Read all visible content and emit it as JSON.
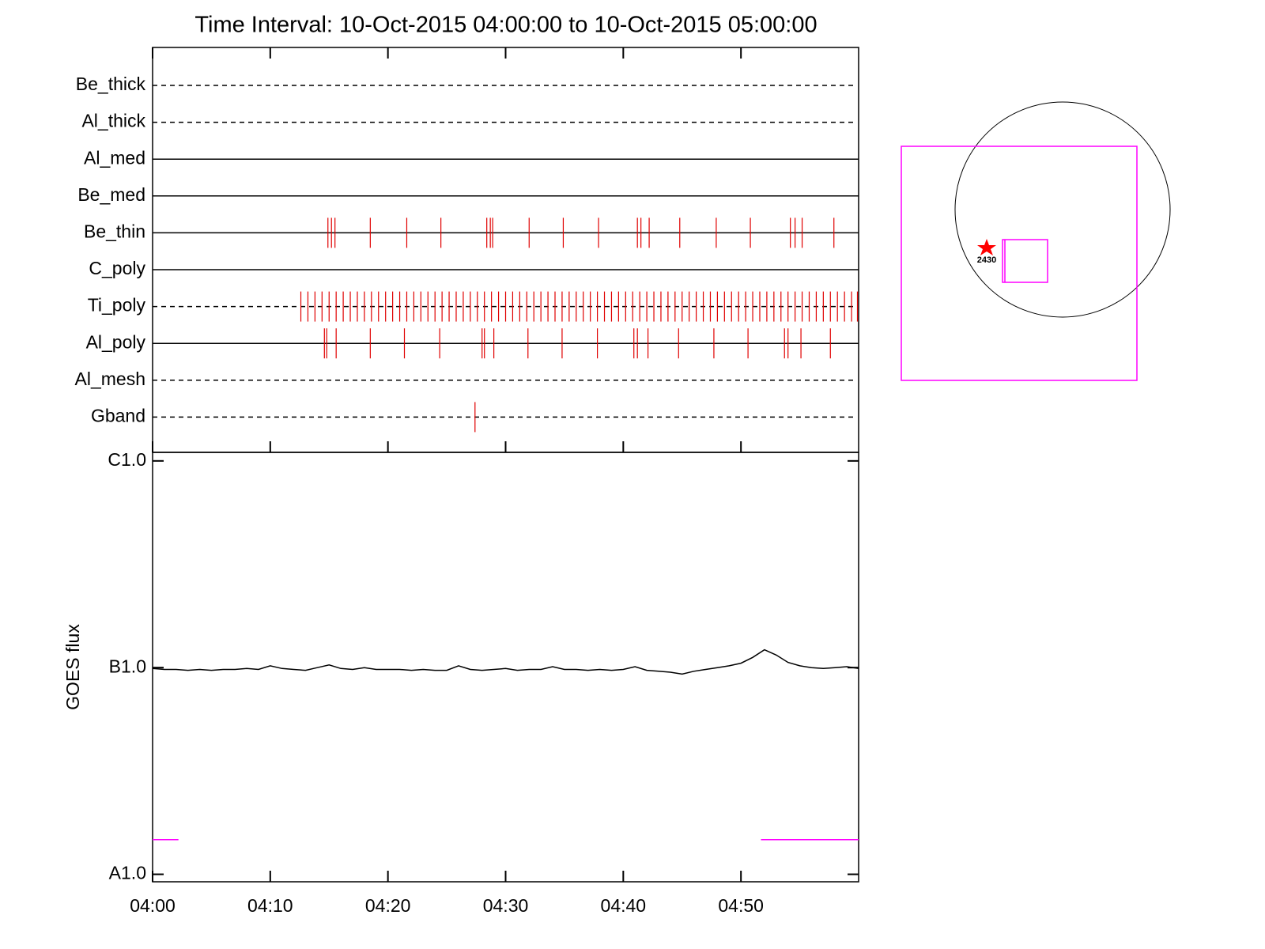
{
  "title": "Time Interval: 10-Oct-2015 04:00:00 to 10-Oct-2015 05:00:00",
  "chart_data": [
    {
      "type": "timeline",
      "xlim": [
        0,
        60
      ],
      "xticks": [
        {
          "value": 0,
          "label": "04:00"
        },
        {
          "value": 10,
          "label": "04:10"
        },
        {
          "value": 20,
          "label": "04:20"
        },
        {
          "value": 30,
          "label": "04:30"
        },
        {
          "value": 40,
          "label": "04:40"
        },
        {
          "value": 50,
          "label": "04:50"
        }
      ],
      "event_color": "#e00000",
      "series": [
        {
          "name": "Be_thick",
          "style": "dashed",
          "x": []
        },
        {
          "name": "Al_thick",
          "style": "dashed",
          "x": []
        },
        {
          "name": "Al_med",
          "style": "solid",
          "x": []
        },
        {
          "name": "Be_med",
          "style": "solid",
          "x": []
        },
        {
          "name": "Be_thin",
          "style": "solid",
          "x": [
            14.9,
            15.2,
            15.5,
            18.5,
            21.6,
            24.5,
            28.4,
            28.7,
            28.9,
            32.0,
            34.9,
            37.9,
            41.2,
            41.5,
            42.2,
            44.8,
            47.9,
            50.8,
            54.2,
            54.6,
            55.2,
            57.9
          ]
        },
        {
          "name": "C_poly",
          "style": "solid",
          "x": []
        },
        {
          "name": "Ti_poly",
          "style": "dashed",
          "x": [
            12.6,
            13.2,
            13.8,
            14.4,
            15.0,
            15.6,
            16.2,
            16.8,
            17.4,
            18.0,
            18.6,
            19.2,
            19.8,
            20.4,
            21.0,
            21.6,
            22.2,
            22.8,
            23.4,
            24.0,
            24.6,
            25.2,
            25.8,
            26.4,
            27.0,
            27.6,
            28.2,
            28.8,
            29.4,
            30.0,
            30.6,
            31.2,
            31.8,
            32.4,
            33.0,
            33.6,
            34.2,
            34.8,
            35.4,
            36.0,
            36.6,
            37.2,
            37.8,
            38.4,
            39.0,
            39.6,
            40.2,
            40.8,
            41.4,
            42.0,
            42.6,
            43.2,
            43.8,
            44.4,
            45.0,
            45.6,
            46.2,
            46.8,
            47.4,
            48.0,
            48.6,
            49.2,
            49.8,
            50.4,
            51.0,
            51.6,
            52.2,
            52.8,
            53.4,
            54.0,
            54.6,
            55.2,
            55.8,
            56.4,
            57.0,
            57.6,
            58.2,
            58.8,
            59.4,
            59.9
          ]
        },
        {
          "name": "Al_poly",
          "style": "solid",
          "x": [
            14.6,
            14.8,
            15.6,
            18.5,
            21.4,
            24.4,
            28.0,
            28.2,
            29.0,
            31.9,
            34.8,
            37.8,
            40.9,
            41.2,
            42.1,
            44.7,
            47.7,
            50.6,
            53.7,
            54.0,
            55.1,
            57.6
          ]
        },
        {
          "name": "Al_mesh",
          "style": "dashed",
          "x": []
        },
        {
          "name": "Gband",
          "style": "dashed",
          "x": [
            27.4
          ]
        }
      ]
    },
    {
      "type": "line",
      "ylabel": "GOES flux",
      "log_y": true,
      "xlim": [
        0,
        60
      ],
      "ylim": [
        9.2e-09,
        1.1e-06
      ],
      "xticks": [
        {
          "value": 0,
          "label": "04:00"
        },
        {
          "value": 10,
          "label": "04:10"
        },
        {
          "value": 20,
          "label": "04:20"
        },
        {
          "value": 30,
          "label": "04:30"
        },
        {
          "value": 40,
          "label": "04:40"
        },
        {
          "value": 50,
          "label": "04:50"
        }
      ],
      "yticks": [
        {
          "value": 1e-08,
          "label": "A1.0"
        },
        {
          "value": 1e-07,
          "label": "B1.0"
        },
        {
          "value": 1e-06,
          "label": "C1.0"
        }
      ],
      "series": [
        {
          "color": "#000000",
          "x": [
            0,
            1,
            2,
            3,
            4,
            5,
            6,
            7,
            8,
            9,
            10,
            11,
            12,
            13,
            14,
            15,
            16,
            17,
            18,
            19,
            20,
            21,
            22,
            23,
            24,
            25,
            26,
            27,
            28,
            29,
            30,
            31,
            32,
            33,
            34,
            35,
            36,
            37,
            38,
            39,
            40,
            41,
            42,
            43,
            44,
            45,
            46,
            47,
            48,
            49,
            50,
            51,
            52,
            53,
            54,
            55,
            56,
            57,
            58,
            59,
            60
          ],
          "values": [
            9.9e-08,
            9.8e-08,
            9.8e-08,
            9.7e-08,
            9.8e-08,
            9.7e-08,
            9.8e-08,
            9.8e-08,
            9.9e-08,
            9.8e-08,
            1.02e-07,
            9.9e-08,
            9.8e-08,
            9.7e-08,
            1e-07,
            1.03e-07,
            9.9e-08,
            9.8e-08,
            1e-07,
            9.8e-08,
            9.8e-08,
            9.8e-08,
            9.7e-08,
            9.8e-08,
            9.7e-08,
            9.7e-08,
            1.02e-07,
            9.8e-08,
            9.7e-08,
            9.8e-08,
            9.9e-08,
            9.7e-08,
            9.8e-08,
            9.8e-08,
            1.01e-07,
            9.8e-08,
            9.8e-08,
            9.7e-08,
            9.8e-08,
            9.7e-08,
            9.8e-08,
            1.01e-07,
            9.7e-08,
            9.6e-08,
            9.5e-08,
            9.3e-08,
            9.6e-08,
            9.8e-08,
            1e-07,
            1.02e-07,
            1.05e-07,
            1.12e-07,
            1.22e-07,
            1.15e-07,
            1.06e-07,
            1.02e-07,
            1e-07,
            9.9e-08,
            1e-07,
            1.01e-07,
            9.9e-08
          ]
        },
        {
          "color": "#ff00ff",
          "x": [
            0,
            2.2,
            null,
            51.7,
            60
          ],
          "values": [
            1.47e-08,
            1.47e-08,
            null,
            1.47e-08,
            1.47e-08
          ]
        }
      ]
    }
  ],
  "map": {
    "region_label": "2430"
  }
}
